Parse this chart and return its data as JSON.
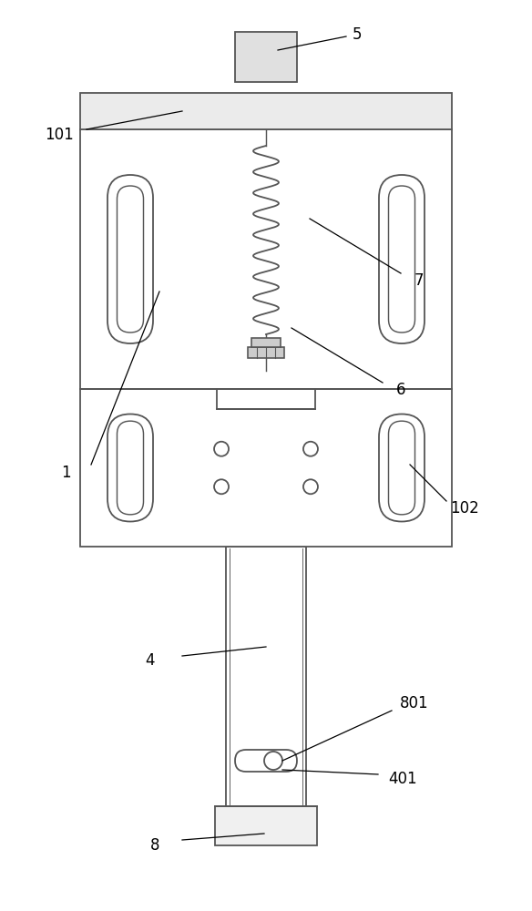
{
  "bg_color": "#ffffff",
  "line_color": "#555555",
  "line_width": 1.3,
  "fig_width": 5.84,
  "fig_height": 10.0
}
